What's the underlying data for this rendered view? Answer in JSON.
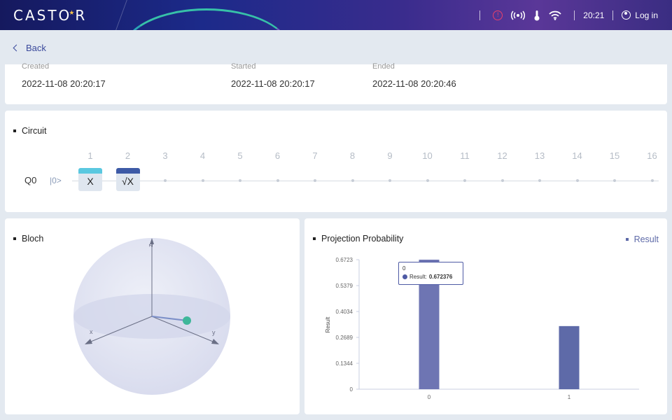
{
  "header": {
    "logo": "CASTOR",
    "time": "20:21",
    "login_label": "Log in"
  },
  "nav": {
    "back_label": "Back"
  },
  "times": {
    "created_label": "Created",
    "created_value": "2022-11-08 20:20:17",
    "started_label": "Started",
    "started_value": "2022-11-08 20:20:17",
    "ended_label": "Ended",
    "ended_value": "2022-11-08 20:20:46"
  },
  "circuit": {
    "title": "Circuit",
    "columns": [
      "1",
      "2",
      "3",
      "4",
      "5",
      "6",
      "7",
      "8",
      "9",
      "10",
      "11",
      "12",
      "13",
      "14",
      "15",
      "16"
    ],
    "qubit": "Q0",
    "init_state": "|0>",
    "gates": [
      {
        "label": "X",
        "column": 1,
        "color": "#5ac8e0"
      },
      {
        "label": "√X",
        "column": 2,
        "color": "#3d5aa6"
      }
    ]
  },
  "bloch": {
    "title": "Bloch",
    "axis_z": "z",
    "axis_x": "x",
    "axis_y": "y"
  },
  "projection": {
    "title": "Projection Probability",
    "legend": "Result",
    "tooltip": {
      "category": "0",
      "series": "Result:",
      "value": "0.672376"
    }
  },
  "chart_data": {
    "type": "bar",
    "categories": [
      "0",
      "1"
    ],
    "series": [
      {
        "name": "Result",
        "values": [
          0.672376,
          0.327624
        ]
      }
    ],
    "ylabel": "Result",
    "yticks": [
      "0",
      "0.1344",
      "0.2689",
      "0.4034",
      "0.5379",
      "0.6723"
    ],
    "ylim": [
      0,
      0.6723
    ],
    "colors": {
      "bar": "#5e6aa8",
      "bar_highlight": "#6e75b3"
    }
  }
}
